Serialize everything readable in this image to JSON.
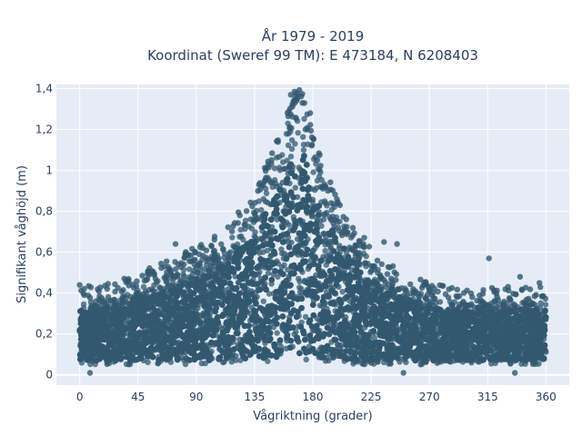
{
  "chart_data": {
    "type": "scatter",
    "title_lines": [
      "År 1979 - 2019",
      "Koordinat (Sweref 99 TM): E 473184, N 6208403"
    ],
    "xlabel": "Vågriktning (grader)",
    "ylabel": "Signifikant våghöjd (m)",
    "xlim": [
      -18,
      378
    ],
    "ylim": [
      -0.05,
      1.42
    ],
    "x_ticks": [
      0,
      45,
      90,
      135,
      180,
      225,
      270,
      315,
      360
    ],
    "x_tick_labels": [
      "0",
      "45",
      "90",
      "135",
      "180",
      "225",
      "270",
      "315",
      "360"
    ],
    "y_ticks": [
      0,
      0.2,
      0.4,
      0.6,
      0.8,
      1,
      1.2,
      1.4
    ],
    "y_tick_labels": [
      "0",
      "0,2",
      "0,4",
      "0,6",
      "0,8",
      "1",
      "1,2",
      "1,4"
    ],
    "grid": true,
    "marker_color": "#32586f",
    "plot_background": "#e5ecf6",
    "envelope": {
      "x": [
        0,
        15,
        30,
        45,
        60,
        75,
        90,
        105,
        120,
        135,
        145,
        155,
        160,
        165,
        170,
        175,
        180,
        190,
        200,
        210,
        225,
        240,
        255,
        270,
        285,
        300,
        315,
        330,
        345,
        360
      ],
      "y_min": [
        0.05,
        0.05,
        0.05,
        0.05,
        0.05,
        0.05,
        0.05,
        0.05,
        0.06,
        0.06,
        0.06,
        0.06,
        0.07,
        0.07,
        0.07,
        0.07,
        0.06,
        0.06,
        0.06,
        0.05,
        0.05,
        0.05,
        0.05,
        0.05,
        0.05,
        0.05,
        0.05,
        0.05,
        0.05,
        0.05
      ],
      "y_max": [
        0.36,
        0.36,
        0.38,
        0.42,
        0.46,
        0.5,
        0.55,
        0.6,
        0.7,
        0.82,
        0.98,
        1.12,
        1.22,
        1.3,
        1.33,
        1.28,
        1.1,
        0.92,
        0.78,
        0.68,
        0.55,
        0.46,
        0.42,
        0.38,
        0.36,
        0.35,
        0.36,
        0.36,
        0.36,
        0.36
      ]
    },
    "highlight_points": [
      {
        "x": 0,
        "y": 0.44
      },
      {
        "x": 74,
        "y": 0.64
      },
      {
        "x": 95,
        "y": 0.62
      },
      {
        "x": 163,
        "y": 1.37
      },
      {
        "x": 168,
        "y": 1.35
      },
      {
        "x": 172,
        "y": 1.33
      },
      {
        "x": 178,
        "y": 1.28
      },
      {
        "x": 235,
        "y": 0.65
      },
      {
        "x": 245,
        "y": 0.64
      },
      {
        "x": 316,
        "y": 0.57
      },
      {
        "x": 340,
        "y": 0.48
      },
      {
        "x": 355,
        "y": 0.45
      },
      {
        "x": 250,
        "y": 0.01
      },
      {
        "x": 8,
        "y": 0.01
      },
      {
        "x": 336,
        "y": 0.01
      }
    ]
  }
}
